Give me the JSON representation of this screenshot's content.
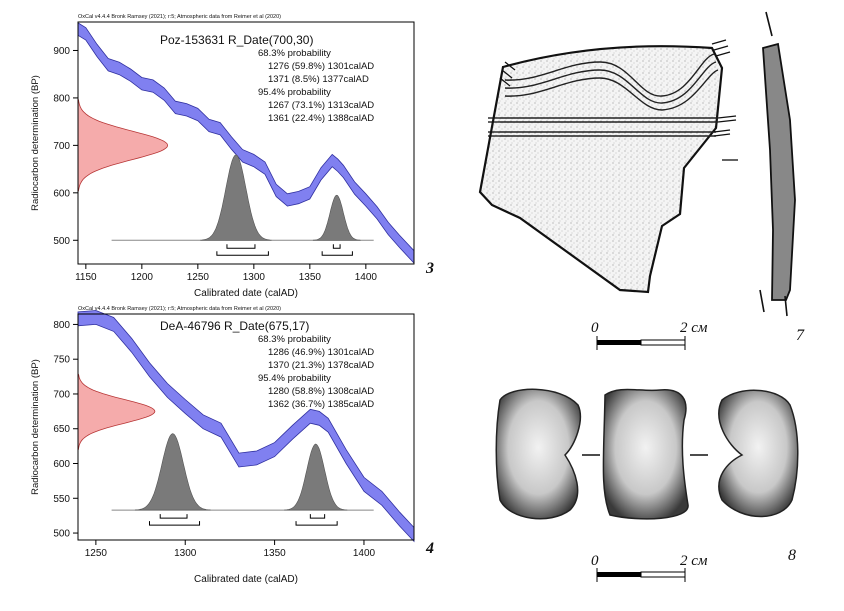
{
  "chart_data": [
    {
      "type": "line",
      "panel_number": "3",
      "header": "OxCal v4.4.4 Bronk Ramsey (2021); r:5; Atmospheric data from Reimer et al (2020)",
      "title": "Poz-153631 R_Date(700,30)",
      "xlabel": "Calibrated date (calAD)",
      "ylabel": "Radiocarbon determination (BP)",
      "xlim": [
        1143,
        1443
      ],
      "ylim": [
        450,
        960
      ],
      "xticks": [
        1150,
        1200,
        1250,
        1300,
        1350,
        1400
      ],
      "yticks": [
        500,
        600,
        700,
        800,
        900
      ],
      "grid": false,
      "probability_lines": [
        "68.3% probability",
        "1276 (59.8%) 1301calAD",
        "1371 (8.5%) 1377calAD",
        "95.4% probability",
        "1267 (73.1%) 1313calAD",
        "1361 (22.4%) 1388calAD"
      ],
      "calibration_curve": {
        "color": "#8080f0",
        "x": [
          1143,
          1150,
          1160,
          1170,
          1180,
          1190,
          1200,
          1210,
          1220,
          1230,
          1240,
          1250,
          1260,
          1270,
          1280,
          1290,
          1300,
          1310,
          1320,
          1330,
          1340,
          1350,
          1360,
          1370,
          1375,
          1380,
          1390,
          1400,
          1410,
          1420,
          1430,
          1443
        ],
        "mid": [
          945,
          935,
          900,
          870,
          862,
          848,
          830,
          825,
          808,
          780,
          775,
          765,
          742,
          735,
          705,
          678,
          668,
          652,
          605,
          585,
          590,
          600,
          640,
          668,
          658,
          645,
          610,
          585,
          558,
          525,
          498,
          465
        ],
        "half_width": 13
      },
      "measurement": {
        "color": "#f4a3a3",
        "mean": 700,
        "sigma": 30,
        "peak_x": 1223
      },
      "posterior": {
        "color": "#7a7a7a",
        "baseline_y": 500,
        "peaks": [
          {
            "center": 1284,
            "sigma": 9,
            "height": 180
          },
          {
            "center": 1374,
            "sigma": 6,
            "height": 95
          }
        ]
      },
      "ranges_68": [
        [
          1276,
          1301
        ],
        [
          1371,
          1377
        ]
      ],
      "ranges_95": [
        [
          1267,
          1313
        ],
        [
          1361,
          1388
        ]
      ]
    },
    {
      "type": "line",
      "panel_number": "4",
      "header": "OxCal v4.4.4 Bronk Ramsey (2021); r:5; Atmospheric data from Reimer et al (2020)",
      "title": "DeA-46796 R_Date(675,17)",
      "xlabel": "Calibrated date (calAD)",
      "ylabel": "Radiocarbon determination (BP)",
      "xlim": [
        1240,
        1428
      ],
      "ylim": [
        490,
        815
      ],
      "xticks": [
        1250,
        1300,
        1350,
        1400
      ],
      "yticks": [
        500,
        550,
        600,
        650,
        700,
        750,
        800
      ],
      "grid": false,
      "probability_lines": [
        "68.3% probability",
        "1286 (46.9%) 1301calAD",
        "1370 (21.3%) 1378calAD",
        "95.4% probability",
        "1280 (58.8%) 1308calAD",
        "1362 (36.7%) 1385calAD"
      ],
      "calibration_curve": {
        "color": "#8080f0",
        "x": [
          1240,
          1250,
          1260,
          1270,
          1280,
          1290,
          1300,
          1310,
          1320,
          1330,
          1340,
          1350,
          1360,
          1370,
          1375,
          1380,
          1390,
          1400,
          1410,
          1420,
          1428
        ],
        "mid": [
          808,
          810,
          800,
          770,
          735,
          705,
          682,
          660,
          648,
          605,
          608,
          620,
          645,
          668,
          665,
          655,
          610,
          570,
          550,
          520,
          498
        ],
        "half_width": 10
      },
      "measurement": {
        "color": "#f4a3a3",
        "mean": 675,
        "sigma": 17,
        "peak_x": 1283
      },
      "posterior": {
        "color": "#7a7a7a",
        "baseline_y": 533,
        "peaks": [
          {
            "center": 1293,
            "sigma": 6,
            "height": 110
          },
          {
            "center": 1373,
            "sigma": 5,
            "height": 95
          }
        ]
      },
      "ranges_68": [
        [
          1286,
          1301
        ],
        [
          1370,
          1378
        ]
      ],
      "ranges_95": [
        [
          1280,
          1308
        ],
        [
          1362,
          1385
        ]
      ]
    }
  ],
  "figures": {
    "sherd_number": "7",
    "bone_number": "8",
    "scale_label_left": "0",
    "scale_label_right": "2 см"
  }
}
